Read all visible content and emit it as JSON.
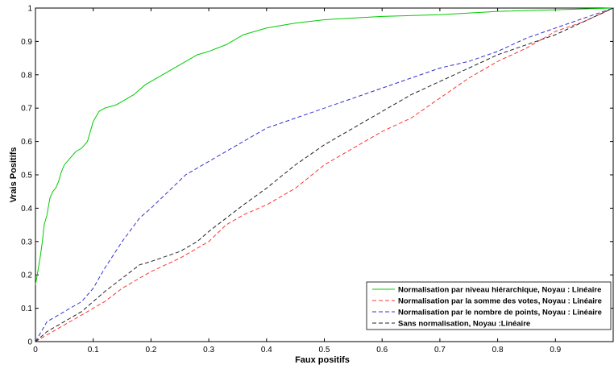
{
  "chart_data": {
    "type": "line",
    "xlabel": "Faux positifs",
    "ylabel": "Vrais Positifs",
    "xlim": [
      0,
      1
    ],
    "ylim": [
      0,
      1
    ],
    "x_ticks": [
      "0",
      "0.1",
      "0.2",
      "0.3",
      "0.4",
      "0.5",
      "0.6",
      "0.7",
      "0.8",
      "0.9"
    ],
    "y_ticks": [
      "0",
      "0.1",
      "0.2",
      "0.3",
      "0.4",
      "0.5",
      "0.6",
      "0.7",
      "0.8",
      "0.9",
      "1"
    ],
    "grid": false,
    "legend_position": "bottom-right",
    "series": [
      {
        "name": "Normalisation par niveau hiérarchique, Noyau : Linéaire",
        "color": "#00cc00",
        "dash": "solid",
        "points": [
          [
            0,
            0.17
          ],
          [
            0.003,
            0.2
          ],
          [
            0.008,
            0.25
          ],
          [
            0.012,
            0.3
          ],
          [
            0.015,
            0.35
          ],
          [
            0.02,
            0.38
          ],
          [
            0.025,
            0.43
          ],
          [
            0.03,
            0.45
          ],
          [
            0.035,
            0.46
          ],
          [
            0.04,
            0.48
          ],
          [
            0.045,
            0.51
          ],
          [
            0.05,
            0.53
          ],
          [
            0.06,
            0.55
          ],
          [
            0.07,
            0.57
          ],
          [
            0.08,
            0.58
          ],
          [
            0.09,
            0.6
          ],
          [
            0.1,
            0.66
          ],
          [
            0.11,
            0.69
          ],
          [
            0.12,
            0.7
          ],
          [
            0.14,
            0.71
          ],
          [
            0.15,
            0.72
          ],
          [
            0.17,
            0.74
          ],
          [
            0.19,
            0.77
          ],
          [
            0.2,
            0.78
          ],
          [
            0.22,
            0.8
          ],
          [
            0.25,
            0.83
          ],
          [
            0.28,
            0.86
          ],
          [
            0.3,
            0.87
          ],
          [
            0.33,
            0.89
          ],
          [
            0.36,
            0.92
          ],
          [
            0.4,
            0.94
          ],
          [
            0.45,
            0.955
          ],
          [
            0.5,
            0.965
          ],
          [
            0.55,
            0.97
          ],
          [
            0.6,
            0.975
          ],
          [
            0.7,
            0.98
          ],
          [
            0.8,
            0.99
          ],
          [
            0.9,
            0.995
          ],
          [
            1,
            1
          ]
        ]
      },
      {
        "name": "Normalisation par la somme des votes, Noyau : Linéaire",
        "color": "#ff3333",
        "dash": "dashed",
        "points": [
          [
            0,
            0
          ],
          [
            0.02,
            0.02
          ],
          [
            0.05,
            0.05
          ],
          [
            0.08,
            0.08
          ],
          [
            0.1,
            0.1
          ],
          [
            0.12,
            0.12
          ],
          [
            0.15,
            0.16
          ],
          [
            0.18,
            0.19
          ],
          [
            0.2,
            0.21
          ],
          [
            0.25,
            0.25
          ],
          [
            0.3,
            0.3
          ],
          [
            0.33,
            0.35
          ],
          [
            0.36,
            0.38
          ],
          [
            0.4,
            0.41
          ],
          [
            0.45,
            0.46
          ],
          [
            0.5,
            0.53
          ],
          [
            0.55,
            0.58
          ],
          [
            0.6,
            0.63
          ],
          [
            0.65,
            0.67
          ],
          [
            0.7,
            0.73
          ],
          [
            0.75,
            0.79
          ],
          [
            0.8,
            0.84
          ],
          [
            0.85,
            0.88
          ],
          [
            0.9,
            0.93
          ],
          [
            0.95,
            0.96
          ],
          [
            1,
            1
          ]
        ]
      },
      {
        "name": "Normalisation par le nombre de points, Noyau : Linéaire",
        "color": "#3333cc",
        "dash": "dashed",
        "points": [
          [
            0,
            0
          ],
          [
            0.01,
            0.03
          ],
          [
            0.02,
            0.06
          ],
          [
            0.04,
            0.08
          ],
          [
            0.06,
            0.1
          ],
          [
            0.08,
            0.12
          ],
          [
            0.1,
            0.16
          ],
          [
            0.12,
            0.22
          ],
          [
            0.15,
            0.3
          ],
          [
            0.18,
            0.37
          ],
          [
            0.2,
            0.4
          ],
          [
            0.23,
            0.45
          ],
          [
            0.26,
            0.5
          ],
          [
            0.3,
            0.54
          ],
          [
            0.35,
            0.59
          ],
          [
            0.4,
            0.64
          ],
          [
            0.45,
            0.67
          ],
          [
            0.5,
            0.7
          ],
          [
            0.55,
            0.73
          ],
          [
            0.6,
            0.76
          ],
          [
            0.65,
            0.79
          ],
          [
            0.7,
            0.82
          ],
          [
            0.75,
            0.84
          ],
          [
            0.8,
            0.87
          ],
          [
            0.85,
            0.91
          ],
          [
            0.9,
            0.94
          ],
          [
            0.95,
            0.97
          ],
          [
            1,
            1
          ]
        ]
      },
      {
        "name": "Sans normalisation, Noyau :Linéaire",
        "color": "#222222",
        "dash": "dashed",
        "points": [
          [
            0,
            0
          ],
          [
            0.02,
            0.03
          ],
          [
            0.04,
            0.05
          ],
          [
            0.06,
            0.07
          ],
          [
            0.08,
            0.09
          ],
          [
            0.1,
            0.12
          ],
          [
            0.12,
            0.15
          ],
          [
            0.15,
            0.19
          ],
          [
            0.18,
            0.23
          ],
          [
            0.2,
            0.24
          ],
          [
            0.25,
            0.27
          ],
          [
            0.28,
            0.3
          ],
          [
            0.3,
            0.33
          ],
          [
            0.33,
            0.37
          ],
          [
            0.36,
            0.41
          ],
          [
            0.4,
            0.46
          ],
          [
            0.45,
            0.53
          ],
          [
            0.5,
            0.59
          ],
          [
            0.55,
            0.64
          ],
          [
            0.6,
            0.69
          ],
          [
            0.65,
            0.74
          ],
          [
            0.7,
            0.78
          ],
          [
            0.75,
            0.82
          ],
          [
            0.8,
            0.86
          ],
          [
            0.85,
            0.89
          ],
          [
            0.9,
            0.92
          ],
          [
            0.95,
            0.96
          ],
          [
            1,
            1
          ]
        ]
      }
    ]
  }
}
